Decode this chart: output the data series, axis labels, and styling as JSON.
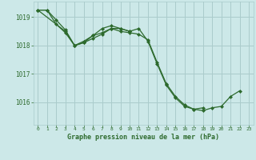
{
  "title": "Graphe pression niveau de la mer (hPa)",
  "background_color": "#cce8e8",
  "grid_color": "#aacccc",
  "line_color": "#2d6a2d",
  "xlim": [
    -0.5,
    23.5
  ],
  "ylim": [
    1015.2,
    1019.55
  ],
  "yticks": [
    1016,
    1017,
    1018,
    1019
  ],
  "xticks": [
    0,
    1,
    2,
    3,
    4,
    5,
    6,
    7,
    8,
    9,
    10,
    11,
    12,
    13,
    14,
    15,
    16,
    17,
    18,
    19,
    20,
    21,
    22,
    23
  ],
  "series": [
    [
      1019.25,
      1019.25,
      1018.75,
      1018.45,
      1018.0,
      1018.1,
      1018.35,
      1018.45,
      1018.6,
      1018.6,
      1018.5,
      1018.6,
      1018.15,
      1017.35,
      1016.6,
      1016.15,
      1015.85,
      1015.75,
      1015.7,
      1015.8,
      1015.85,
      1016.2,
      1016.4,
      null
    ],
    [
      1019.25,
      1019.25,
      1018.9,
      1018.55,
      1018.0,
      1018.15,
      1018.35,
      1018.6,
      1018.7,
      1018.6,
      1018.5,
      null,
      null,
      null,
      null,
      null,
      null,
      null,
      null,
      null,
      null,
      null,
      null,
      null
    ],
    [
      1019.25,
      null,
      null,
      1018.5,
      1018.0,
      1018.1,
      1018.25,
      1018.4,
      1018.6,
      1018.5,
      1018.45,
      1018.4,
      1018.2,
      1017.4,
      1016.65,
      1016.2,
      1015.9,
      1015.75,
      1015.8,
      null,
      null,
      null,
      null,
      null
    ]
  ]
}
